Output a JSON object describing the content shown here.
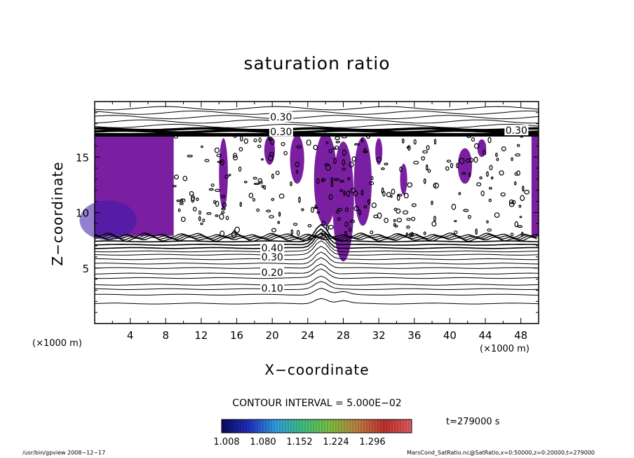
{
  "chart_data": {
    "type": "heatmap",
    "title": "saturation ratio",
    "xlabel": "X−coordinate",
    "ylabel": "Z−coordinate",
    "x_unit": "(×1000 m)",
    "y_unit": "(×1000 m)",
    "xlim": [
      0,
      50
    ],
    "ylim": [
      0,
      20
    ],
    "x_ticks": [
      "4",
      "8",
      "12",
      "16",
      "20",
      "24",
      "28",
      "32",
      "36",
      "40",
      "44",
      "48"
    ],
    "y_ticks": [
      "5",
      "10",
      "15"
    ],
    "contour_labels": [
      "0.30",
      "0.30",
      "0.30",
      "0.40",
      "0.30",
      "0.20",
      "0.10"
    ],
    "contour_interval": "CONTOUR INTERVAL = 5.000E−02",
    "colorbar": {
      "ticks": [
        "1.008",
        "1.080",
        "1.152",
        "1.224",
        "1.296"
      ],
      "colors": [
        "#0a0a60",
        "#2030c0",
        "#30a0e0",
        "#40c080",
        "#80c040",
        "#c08040",
        "#c03030",
        "#e06060"
      ]
    },
    "supersaturated_color": "#7b1fa2",
    "time": "t=279000 s"
  },
  "footer": {
    "left": "/usr/bin/gpview   2008−12−17",
    "right": "MarsCond_SatRatio.nc@SatRatio,x=0:50000,z=0:20000,t=279000"
  }
}
